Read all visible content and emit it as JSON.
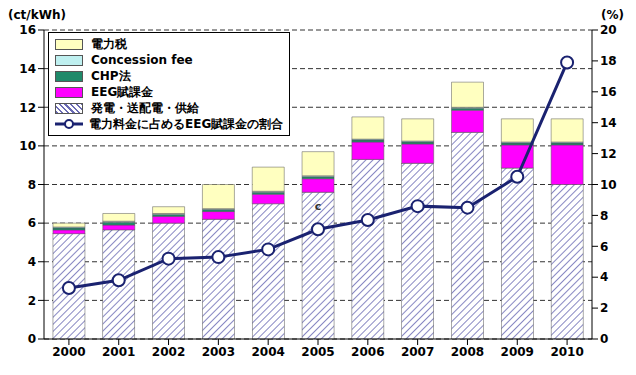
{
  "chart_data": {
    "type": "bar",
    "stacked": true,
    "y_label": "(ct/kWh)",
    "y2_label": "(%)",
    "categories": [
      "2000",
      "2001",
      "2002",
      "2003",
      "2004",
      "2005",
      "2006",
      "2007",
      "2008",
      "2009",
      "2010"
    ],
    "ylim": [
      0,
      16
    ],
    "yticks": [
      0,
      2,
      4,
      6,
      8,
      10,
      12,
      14,
      16
    ],
    "y2lim": [
      0,
      20
    ],
    "y2ticks": [
      0,
      2,
      4,
      6,
      8,
      10,
      12,
      14,
      16,
      18,
      20
    ],
    "grid": true,
    "legend": "upper left",
    "series": [
      {
        "name": "発電・送配電・供給",
        "type": "bar",
        "color": "#6a6ab4",
        "values": [
          5.45,
          5.65,
          6.0,
          6.2,
          7.0,
          7.6,
          9.3,
          9.1,
          10.7,
          8.85,
          8.0
        ]
      },
      {
        "name": "EEG賦課金",
        "type": "bar",
        "color": "#ff00ff",
        "values": [
          0.2,
          0.25,
          0.35,
          0.4,
          0.5,
          0.7,
          0.9,
          1.0,
          1.15,
          1.2,
          2.05
        ]
      },
      {
        "name": "CHP法",
        "type": "bar",
        "color": "#1f8a6a",
        "values": [
          0.1,
          0.15,
          0.1,
          0.1,
          0.1,
          0.1,
          0.1,
          0.1,
          0.1,
          0.1,
          0.1
        ]
      },
      {
        "name": "Concession fee",
        "type": "bar",
        "color": "#bff0f0",
        "values": [
          0.05,
          0.05,
          0.05,
          0.05,
          0.05,
          0.05,
          0.05,
          0.05,
          0.05,
          0.05,
          0.05
        ]
      },
      {
        "name": "電力税",
        "type": "bar",
        "color": "#ffffc0",
        "values": [
          0.2,
          0.4,
          0.35,
          1.25,
          1.25,
          1.25,
          1.15,
          1.15,
          1.3,
          1.2,
          1.2
        ]
      },
      {
        "name": "電力料金に占めるEEG賦課金の割合",
        "type": "line",
        "axis": "y2",
        "marker": "circle",
        "color": "#1a2270",
        "values": [
          3.3,
          3.8,
          5.2,
          5.3,
          5.8,
          7.1,
          7.7,
          8.6,
          8.5,
          10.5,
          17.9
        ]
      }
    ],
    "annotations": [
      {
        "text": "c",
        "x": "2005",
        "y": 6.9
      }
    ]
  }
}
